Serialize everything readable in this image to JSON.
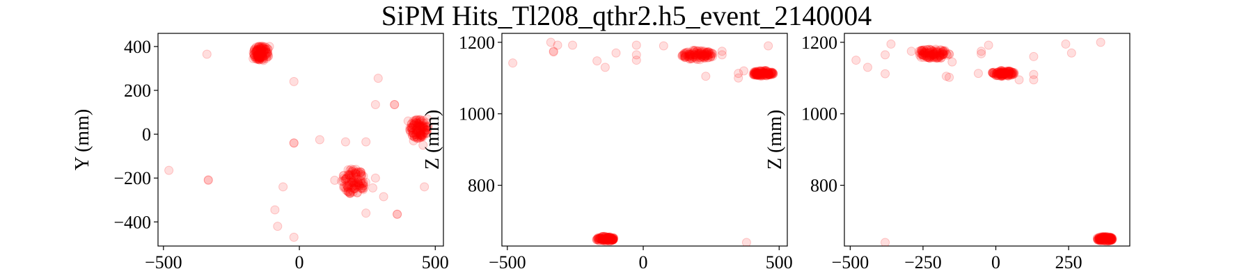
{
  "figure": {
    "title": "SiPM Hits_Tl208_qthr2.h5_event_2140004",
    "point_color": "#ff0000",
    "background": "#ffffff"
  },
  "chart_data": [
    {
      "type": "scatter",
      "name": "xy",
      "xlabel": "",
      "ylabel": "Y (mm)",
      "xlim": [
        -520,
        530
      ],
      "ylim": [
        -510,
        460
      ],
      "xticks": [
        -500,
        0,
        500
      ],
      "xtick_labels": [
        "−500",
        "0",
        "500"
      ],
      "yticks": [
        -400,
        -200,
        0,
        200,
        400
      ],
      "ytick_labels": [
        "−400",
        "−200",
        "0",
        "200",
        "400"
      ],
      "grid": false,
      "clusters": [
        {
          "cx": -140,
          "cy": 370,
          "rx": 30,
          "ry": 35
        },
        {
          "cx": 440,
          "cy": 25,
          "rx": 35,
          "ry": 45
        },
        {
          "cx": 200,
          "cy": -215,
          "rx": 45,
          "ry": 60
        }
      ],
      "points": [
        [
          -480,
          -165
        ],
        [
          -335,
          -210
        ],
        [
          -335,
          -208
        ],
        [
          -340,
          365
        ],
        [
          -20,
          240
        ],
        [
          -20,
          -40
        ],
        [
          -20,
          -40
        ],
        [
          290,
          255
        ],
        [
          280,
          135
        ],
        [
          350,
          135
        ],
        [
          350,
          135
        ],
        [
          75,
          -25
        ],
        [
          170,
          -35
        ],
        [
          245,
          -35
        ],
        [
          -60,
          -240
        ],
        [
          -90,
          -345
        ],
        [
          -80,
          -420
        ],
        [
          -20,
          -470
        ],
        [
          460,
          -240
        ],
        [
          360,
          -365
        ],
        [
          360,
          -365
        ],
        [
          245,
          -360
        ],
        [
          270,
          -245
        ],
        [
          310,
          -285
        ],
        [
          280,
          -200
        ],
        [
          130,
          -210
        ],
        [
          455,
          -50
        ],
        [
          400,
          60
        ],
        [
          470,
          70
        ],
        [
          420,
          -30
        ],
        [
          -110,
          400
        ],
        [
          -170,
          345
        ]
      ]
    },
    {
      "type": "scatter",
      "name": "xz",
      "xlabel": "",
      "ylabel": "Z (mm)",
      "xlim": [
        -520,
        530
      ],
      "ylim": [
        630,
        1225
      ],
      "xticks": [
        -500,
        0,
        500
      ],
      "xtick_labels": [
        "−500",
        "0",
        "500"
      ],
      "yticks": [
        800,
        1000,
        1200
      ],
      "ytick_labels": [
        "800",
        "1000",
        "1200"
      ],
      "grid": false,
      "clusters": [
        {
          "cx": 200,
          "cy": 1165,
          "rx": 60,
          "ry": 14
        },
        {
          "cx": 440,
          "cy": 1113,
          "rx": 40,
          "ry": 8
        },
        {
          "cx": -140,
          "cy": 650,
          "rx": 35,
          "ry": 7
        }
      ],
      "points": [
        [
          -480,
          1142
        ],
        [
          -340,
          1200
        ],
        [
          -330,
          1173
        ],
        [
          -330,
          1175
        ],
        [
          -315,
          1192
        ],
        [
          -260,
          1192
        ],
        [
          -170,
          1148
        ],
        [
          -140,
          1130
        ],
        [
          -100,
          1170
        ],
        [
          -25,
          1192
        ],
        [
          -25,
          1165
        ],
        [
          -25,
          1150
        ],
        [
          75,
          1190
        ],
        [
          230,
          1105
        ],
        [
          290,
          1165
        ],
        [
          290,
          1175
        ],
        [
          350,
          1100
        ],
        [
          350,
          1113
        ],
        [
          370,
          1120
        ],
        [
          460,
          1190
        ],
        [
          380,
          640
        ],
        [
          255,
          1160
        ]
      ]
    },
    {
      "type": "scatter",
      "name": "yz",
      "xlabel": "",
      "ylabel": "Z (mm)",
      "xlim": [
        -520,
        460
      ],
      "ylim": [
        630,
        1225
      ],
      "xticks": [
        -500,
        -250,
        0,
        250
      ],
      "xtick_labels": [
        "−500",
        "−250",
        "0",
        "250"
      ],
      "yticks": [
        800,
        1000,
        1200
      ],
      "ytick_labels": [
        "800",
        "1000",
        "1200"
      ],
      "grid": false,
      "clusters": [
        {
          "cx": -215,
          "cy": 1168,
          "rx": 60,
          "ry": 14
        },
        {
          "cx": 25,
          "cy": 1113,
          "rx": 40,
          "ry": 8
        },
        {
          "cx": 375,
          "cy": 650,
          "rx": 28,
          "ry": 7
        }
      ],
      "points": [
        [
          -480,
          1150
        ],
        [
          -440,
          1130
        ],
        [
          -380,
          1112
        ],
        [
          -380,
          1165
        ],
        [
          -360,
          1195
        ],
        [
          -170,
          1105
        ],
        [
          -160,
          1102
        ],
        [
          -50,
          1175
        ],
        [
          -50,
          1168
        ],
        [
          -25,
          1192
        ],
        [
          80,
          1095
        ],
        [
          130,
          1160
        ],
        [
          130,
          1110
        ],
        [
          130,
          1095
        ],
        [
          240,
          1195
        ],
        [
          260,
          1170
        ],
        [
          360,
          1200
        ],
        [
          -380,
          640
        ],
        [
          -60,
          1113
        ],
        [
          -150,
          1145
        ],
        [
          -290,
          1175
        ]
      ]
    }
  ]
}
